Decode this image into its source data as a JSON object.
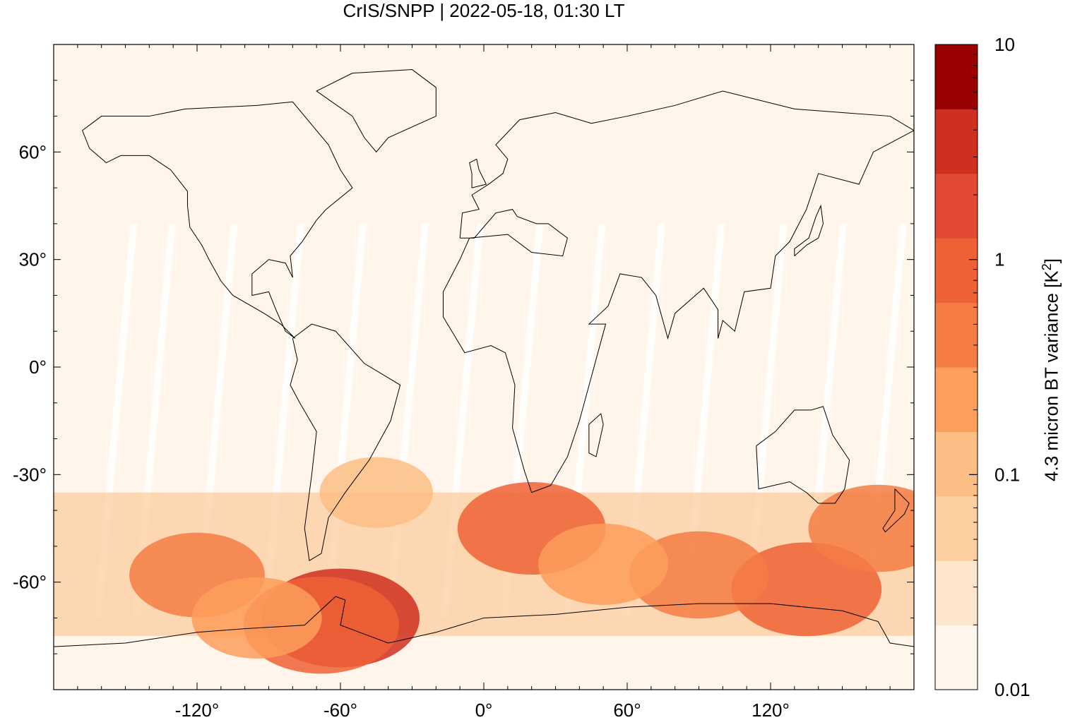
{
  "title": "CrIS/SNPP | 2022-05-18, 01:30 LT",
  "colorbar": {
    "label": "4.3 micron BT variance [K²]",
    "label_base": "4.3 micron BT variance [K",
    "label_sup": "2",
    "label_end": "]",
    "tick_labels": [
      "10",
      "1",
      "0.1",
      "0.01"
    ],
    "tick_values": [
      10,
      1,
      0.1,
      0.01
    ],
    "scale": "log",
    "range": [
      0.01,
      10
    ],
    "colors": [
      "#fff5eb",
      "#fee6ce",
      "#fdd0a2",
      "#fdbe85",
      "#fd9e5c",
      "#f57c45",
      "#ee6136",
      "#e34a33",
      "#cf2f1e",
      "#990000"
    ]
  },
  "chart_data": {
    "type": "heatmap",
    "title": "CrIS/SNPP | 2022-05-18, 01:30 LT",
    "xlabel": "",
    "ylabel": "",
    "xlim": [
      -180,
      180
    ],
    "ylim": [
      -90,
      90
    ],
    "x_ticks": [
      -120,
      -60,
      0,
      60,
      120
    ],
    "x_tick_labels": [
      "-120°",
      "-60°",
      "0°",
      "60°",
      "120°"
    ],
    "y_ticks": [
      60,
      30,
      0,
      -30,
      -60
    ],
    "y_tick_labels": [
      "60°",
      "30°",
      "0°",
      "-30°",
      "-60°"
    ],
    "color_scale": "log",
    "value_range": [
      0.01,
      10
    ],
    "background_value": 0.01,
    "hotspots": [
      {
        "lon": -60,
        "lat": -70,
        "value": 3.0
      },
      {
        "lon": -68,
        "lat": -72,
        "value": 1.2
      },
      {
        "lon": 20,
        "lat": -45,
        "value": 0.8
      },
      {
        "lon": 135,
        "lat": -62,
        "value": 0.9
      },
      {
        "lon": 90,
        "lat": -58,
        "value": 0.5
      },
      {
        "lon": -120,
        "lat": -58,
        "value": 0.4
      },
      {
        "lon": 165,
        "lat": -45,
        "value": 0.5
      },
      {
        "lon": -45,
        "lat": -35,
        "value": 0.12
      },
      {
        "lon": 50,
        "lat": -55,
        "value": 0.3
      },
      {
        "lon": -95,
        "lat": -70,
        "value": 0.3
      }
    ]
  }
}
